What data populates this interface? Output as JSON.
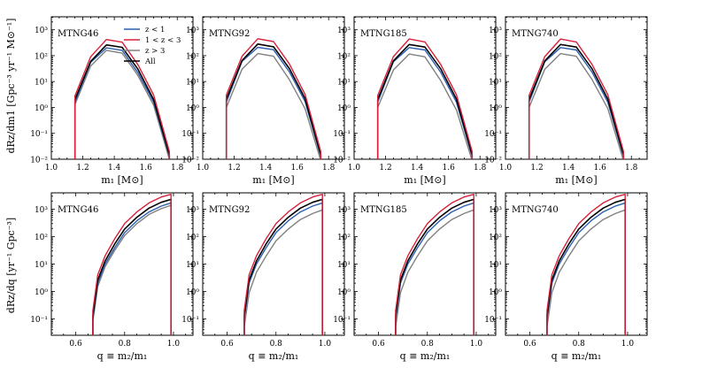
{
  "legend": [
    {
      "label": "z < 1",
      "color": "#2a5fb0"
    },
    {
      "label": "1 < z < 3",
      "color": "#d6213b"
    },
    {
      "label": "z > 3",
      "color": "#808080"
    },
    {
      "label": "All",
      "color": "#000000"
    }
  ],
  "rows": [
    {
      "ylabel": "dR_z/dm_1 [Gpc^-3 yr^-1 M_sun^-1]",
      "ylabel_text": "dRz/dm1 [Gpc⁻³ yr⁻¹ M⊙⁻¹]",
      "xlabel": "m₁ [M⊙]",
      "x_range": [
        1.0,
        1.9
      ],
      "x_ticks": [
        1.0,
        1.2,
        1.4,
        1.6,
        1.8
      ],
      "x_tick_labels": [
        "1.0",
        "1.2",
        "1.4",
        "1.6",
        "1.8"
      ],
      "y_log_range": [
        -2,
        3.5
      ],
      "y_ticks": [
        -2,
        -1,
        0,
        1,
        2,
        3
      ],
      "y_tick_labels": [
        "10⁻²",
        "10⁻¹",
        "10⁰",
        "10¹",
        "10²",
        "10³"
      ]
    },
    {
      "ylabel": "dR_z/dq [yr^-1 Gpc^-3]",
      "ylabel_text": "dRz/dq [yr⁻¹ Gpc⁻³]",
      "xlabel": "q ≡ m₂/m₁",
      "x_range": [
        0.5,
        1.08
      ],
      "x_ticks": [
        0.6,
        0.8,
        1.0
      ],
      "x_tick_labels": [
        "0.6",
        "0.8",
        "1.0"
      ],
      "y_log_range": [
        -1.6,
        3.6
      ],
      "y_ticks": [
        -1,
        0,
        1,
        2,
        3
      ],
      "y_tick_labels": [
        "10⁻¹",
        "10⁰",
        "10¹",
        "10²",
        "10³"
      ]
    }
  ],
  "panel_titles": [
    "MTNG46",
    "MTNG92",
    "MTNG185",
    "MTNG740"
  ],
  "chart_data": [
    {
      "type": "line",
      "title": "MTNG46",
      "xlabel": "m₁ [M⊙]",
      "ylabel": "dRz/dm1 [Gpc⁻³ yr⁻¹ M⊙⁻¹]",
      "yscale": "log",
      "xlim": [
        1.0,
        1.9
      ],
      "ylim": [
        0.01,
        3000
      ],
      "x": [
        1.15,
        1.25,
        1.35,
        1.45,
        1.55,
        1.65,
        1.75
      ],
      "series": [
        {
          "name": "z < 1",
          "values": [
            1.6,
            55,
            200,
            160,
            22,
            1.6,
            0.013
          ]
        },
        {
          "name": "1 < z < 3",
          "values": [
            2.8,
            90,
            420,
            330,
            45,
            3.0,
            0.02
          ]
        },
        {
          "name": "z > 3",
          "values": [
            1.3,
            40,
            160,
            125,
            17,
            1.2,
            0.01
          ]
        },
        {
          "name": "All",
          "values": [
            2.0,
            60,
            260,
            210,
            30,
            2.0,
            0.015
          ]
        }
      ]
    },
    {
      "type": "line",
      "title": "MTNG92",
      "xlabel": "m₁ [M⊙]",
      "ylabel": "dRz/dm1 [Gpc⁻³ yr⁻¹ M⊙⁻¹]",
      "yscale": "log",
      "xlim": [
        1.0,
        1.9
      ],
      "ylim": [
        0.01,
        3000
      ],
      "x": [
        1.15,
        1.25,
        1.35,
        1.45,
        1.55,
        1.65,
        1.75
      ],
      "series": [
        {
          "name": "z < 1",
          "values": [
            1.6,
            60,
            210,
            170,
            24,
            1.7,
            0.013
          ]
        },
        {
          "name": "1 < z < 3",
          "values": [
            3.0,
            95,
            450,
            350,
            48,
            3.2,
            0.02
          ]
        },
        {
          "name": "z > 3",
          "values": [
            1.0,
            30,
            120,
            95,
            12,
            0.9,
            0.009
          ]
        },
        {
          "name": "All",
          "values": [
            2.1,
            65,
            280,
            220,
            32,
            2.2,
            0.015
          ]
        }
      ]
    },
    {
      "type": "line",
      "title": "MTNG185",
      "xlabel": "m₁ [M⊙]",
      "ylabel": "dRz/dm1 [Gpc⁻³ yr⁻¹ M⊙⁻¹]",
      "yscale": "log",
      "xlim": [
        1.0,
        1.9
      ],
      "ylim": [
        0.01,
        3000
      ],
      "x": [
        1.15,
        1.25,
        1.35,
        1.45,
        1.55,
        1.65,
        1.75
      ],
      "series": [
        {
          "name": "z < 1",
          "values": [
            1.6,
            58,
            205,
            165,
            23,
            1.6,
            0.013
          ]
        },
        {
          "name": "1 < z < 3",
          "values": [
            2.9,
            92,
            440,
            340,
            46,
            3.1,
            0.02
          ]
        },
        {
          "name": "z > 3",
          "values": [
            1.0,
            28,
            115,
            90,
            11,
            0.8,
            0.009
          ]
        },
        {
          "name": "All",
          "values": [
            2.0,
            63,
            270,
            215,
            31,
            2.1,
            0.015
          ]
        }
      ]
    },
    {
      "type": "line",
      "title": "MTNG740",
      "xlabel": "m₁ [M⊙]",
      "ylabel": "dRz/dm1 [Gpc⁻³ yr⁻¹ M⊙⁻¹]",
      "yscale": "log",
      "xlim": [
        1.0,
        1.9
      ],
      "ylim": [
        0.01,
        3000
      ],
      "x": [
        1.15,
        1.25,
        1.35,
        1.45,
        1.55,
        1.65,
        1.75
      ],
      "series": [
        {
          "name": "z < 1",
          "values": [
            1.6,
            58,
            205,
            165,
            23,
            1.6,
            0.013
          ]
        },
        {
          "name": "1 < z < 3",
          "values": [
            2.9,
            92,
            440,
            340,
            46,
            3.1,
            0.02
          ]
        },
        {
          "name": "z > 3",
          "values": [
            1.0,
            30,
            120,
            95,
            12,
            0.9,
            0.009
          ]
        },
        {
          "name": "All",
          "values": [
            2.0,
            63,
            270,
            215,
            31,
            2.1,
            0.015
          ]
        }
      ]
    },
    {
      "type": "line",
      "title": "MTNG46",
      "xlabel": "q ≡ m₂/m₁",
      "ylabel": "dRz/dq [yr⁻¹ Gpc⁻³]",
      "yscale": "log",
      "xlim": [
        0.5,
        1.08
      ],
      "ylim": [
        0.025,
        4000
      ],
      "x": [
        0.67,
        0.69,
        0.72,
        0.76,
        0.8,
        0.85,
        0.9,
        0.95,
        0.99
      ],
      "series": [
        {
          "name": "z < 1",
          "values": [
            0.1,
            2.0,
            10,
            40,
            140,
            380,
            800,
            1300,
            1700
          ]
        },
        {
          "name": "1 < z < 3",
          "values": [
            0.2,
            4.0,
            20,
            85,
            300,
            800,
            1700,
            2800,
            3500
          ]
        },
        {
          "name": "z > 3",
          "values": [
            0.08,
            1.5,
            8,
            32,
            110,
            300,
            650,
            1050,
            1400
          ]
        },
        {
          "name": "All",
          "values": [
            0.13,
            2.6,
            13,
            55,
            190,
            510,
            1100,
            1800,
            2300
          ]
        }
      ]
    },
    {
      "type": "line",
      "title": "MTNG92",
      "xlabel": "q ≡ m₂/m₁",
      "ylabel": "dRz/dq [yr⁻¹ Gpc⁻³]",
      "yscale": "log",
      "xlim": [
        0.5,
        1.08
      ],
      "ylim": [
        0.025,
        4000
      ],
      "x": [
        0.67,
        0.69,
        0.72,
        0.76,
        0.8,
        0.85,
        0.9,
        0.95,
        0.99
      ],
      "series": [
        {
          "name": "z < 1",
          "values": [
            0.1,
            2.0,
            10,
            40,
            140,
            380,
            800,
            1300,
            1700
          ]
        },
        {
          "name": "1 < z < 3",
          "values": [
            0.2,
            4.0,
            20,
            85,
            300,
            800,
            1700,
            2800,
            3500
          ]
        },
        {
          "name": "z > 3",
          "values": [
            0.05,
            0.9,
            5,
            20,
            70,
            190,
            420,
            700,
            950
          ]
        },
        {
          "name": "All",
          "values": [
            0.13,
            2.6,
            13,
            55,
            190,
            510,
            1100,
            1800,
            2300
          ]
        }
      ]
    },
    {
      "type": "line",
      "title": "MTNG185",
      "xlabel": "q ≡ m₂/m₁",
      "ylabel": "dRz/dq [yr⁻¹ Gpc⁻³]",
      "yscale": "log",
      "xlim": [
        0.5,
        1.08
      ],
      "ylim": [
        0.025,
        4000
      ],
      "x": [
        0.67,
        0.69,
        0.72,
        0.76,
        0.8,
        0.85,
        0.9,
        0.95,
        0.99
      ],
      "series": [
        {
          "name": "z < 1",
          "values": [
            0.1,
            2.0,
            10,
            40,
            140,
            380,
            800,
            1300,
            1700
          ]
        },
        {
          "name": "1 < z < 3",
          "values": [
            0.2,
            4.0,
            20,
            85,
            300,
            800,
            1700,
            2800,
            3500
          ]
        },
        {
          "name": "z > 3",
          "values": [
            0.05,
            0.9,
            5,
            20,
            70,
            190,
            420,
            700,
            950
          ]
        },
        {
          "name": "All",
          "values": [
            0.13,
            2.6,
            13,
            55,
            190,
            510,
            1100,
            1800,
            2300
          ]
        }
      ]
    },
    {
      "type": "line",
      "title": "MTNG740",
      "xlabel": "q ≡ m₂/m₁",
      "ylabel": "dRz/dq [yr⁻¹ Gpc⁻³]",
      "yscale": "log",
      "xlim": [
        0.5,
        1.08
      ],
      "ylim": [
        0.025,
        4000
      ],
      "x": [
        0.67,
        0.69,
        0.72,
        0.76,
        0.8,
        0.85,
        0.9,
        0.95,
        0.99
      ],
      "series": [
        {
          "name": "z < 1",
          "values": [
            0.1,
            2.0,
            10,
            40,
            140,
            380,
            800,
            1300,
            1700
          ]
        },
        {
          "name": "1 < z < 3",
          "values": [
            0.2,
            4.0,
            20,
            85,
            300,
            800,
            1700,
            2800,
            3500
          ]
        },
        {
          "name": "z > 3",
          "values": [
            0.05,
            0.9,
            5,
            20,
            70,
            190,
            420,
            700,
            950
          ]
        },
        {
          "name": "All",
          "values": [
            0.13,
            2.6,
            13,
            55,
            190,
            510,
            1100,
            1800,
            2300
          ]
        }
      ]
    }
  ]
}
